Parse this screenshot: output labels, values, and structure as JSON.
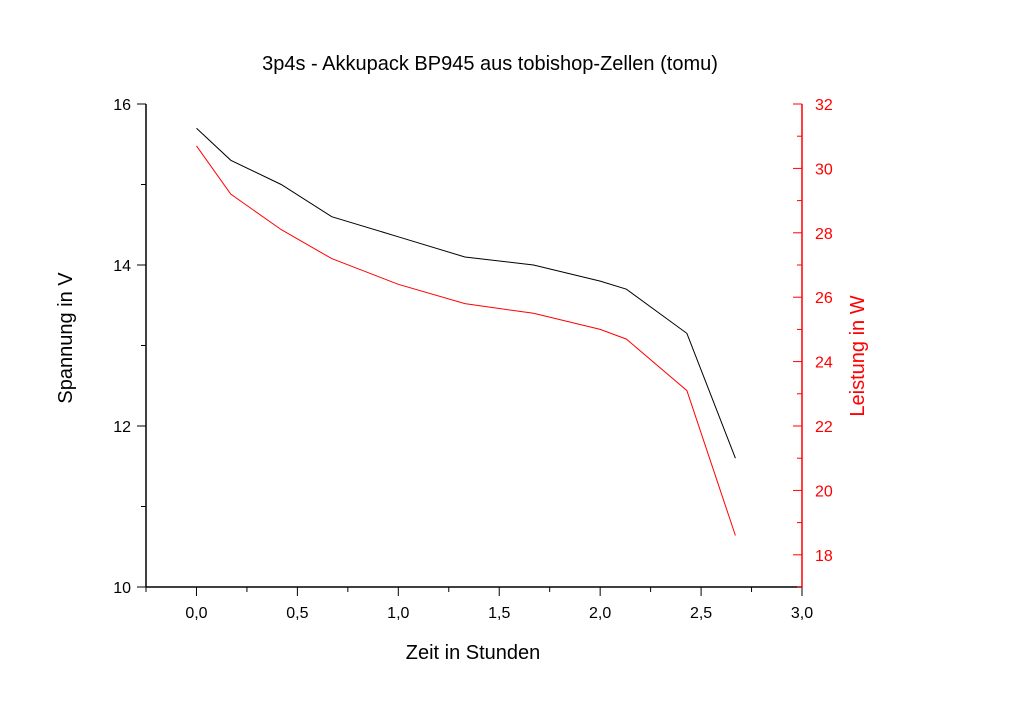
{
  "chart_data": {
    "type": "line",
    "title": "3p4s - Akkupack BP945 aus tobishop-Zellen (tomu)",
    "xlabel": "Zeit in Stunden",
    "ylabel": "Spannung in V",
    "y2label": "Leistung in W",
    "xlim": [
      -0.25,
      3.0
    ],
    "ylim": [
      10,
      16
    ],
    "y2lim": [
      17,
      32
    ],
    "x_ticks": [
      0.0,
      0.5,
      1.0,
      1.5,
      2.0,
      2.5,
      3.0
    ],
    "x_tick_labels": [
      "0,0",
      "0,5",
      "1,0",
      "1,5",
      "2,0",
      "2,5",
      "3,0"
    ],
    "y_ticks": [
      10,
      12,
      14,
      16
    ],
    "y_tick_labels": [
      "10",
      "12",
      "14",
      "16"
    ],
    "y2_ticks": [
      18,
      20,
      22,
      24,
      26,
      28,
      30,
      32
    ],
    "y2_tick_labels": [
      "18",
      "20",
      "22",
      "24",
      "26",
      "28",
      "30",
      "32"
    ],
    "grid": false,
    "colors": {
      "voltage": "#000000",
      "power": "#ff0000",
      "axis_left": "#000000",
      "axis_right": "#ff0000"
    },
    "series": [
      {
        "axis": "left",
        "color": "#000000",
        "x": [
          0.0,
          0.17,
          0.42,
          0.67,
          1.0,
          1.33,
          1.67,
          2.0,
          2.13,
          2.43,
          2.67
        ],
        "values": [
          15.7,
          15.3,
          15.0,
          14.6,
          14.35,
          14.1,
          14.0,
          13.8,
          13.7,
          13.15,
          11.6
        ]
      },
      {
        "axis": "right",
        "color": "#ff0000",
        "x": [
          0.0,
          0.17,
          0.42,
          0.67,
          1.0,
          1.33,
          1.67,
          2.0,
          2.13,
          2.43,
          2.67
        ],
        "values": [
          30.7,
          29.2,
          28.1,
          27.2,
          26.4,
          25.8,
          25.5,
          25.0,
          24.7,
          23.1,
          18.6
        ]
      }
    ]
  }
}
